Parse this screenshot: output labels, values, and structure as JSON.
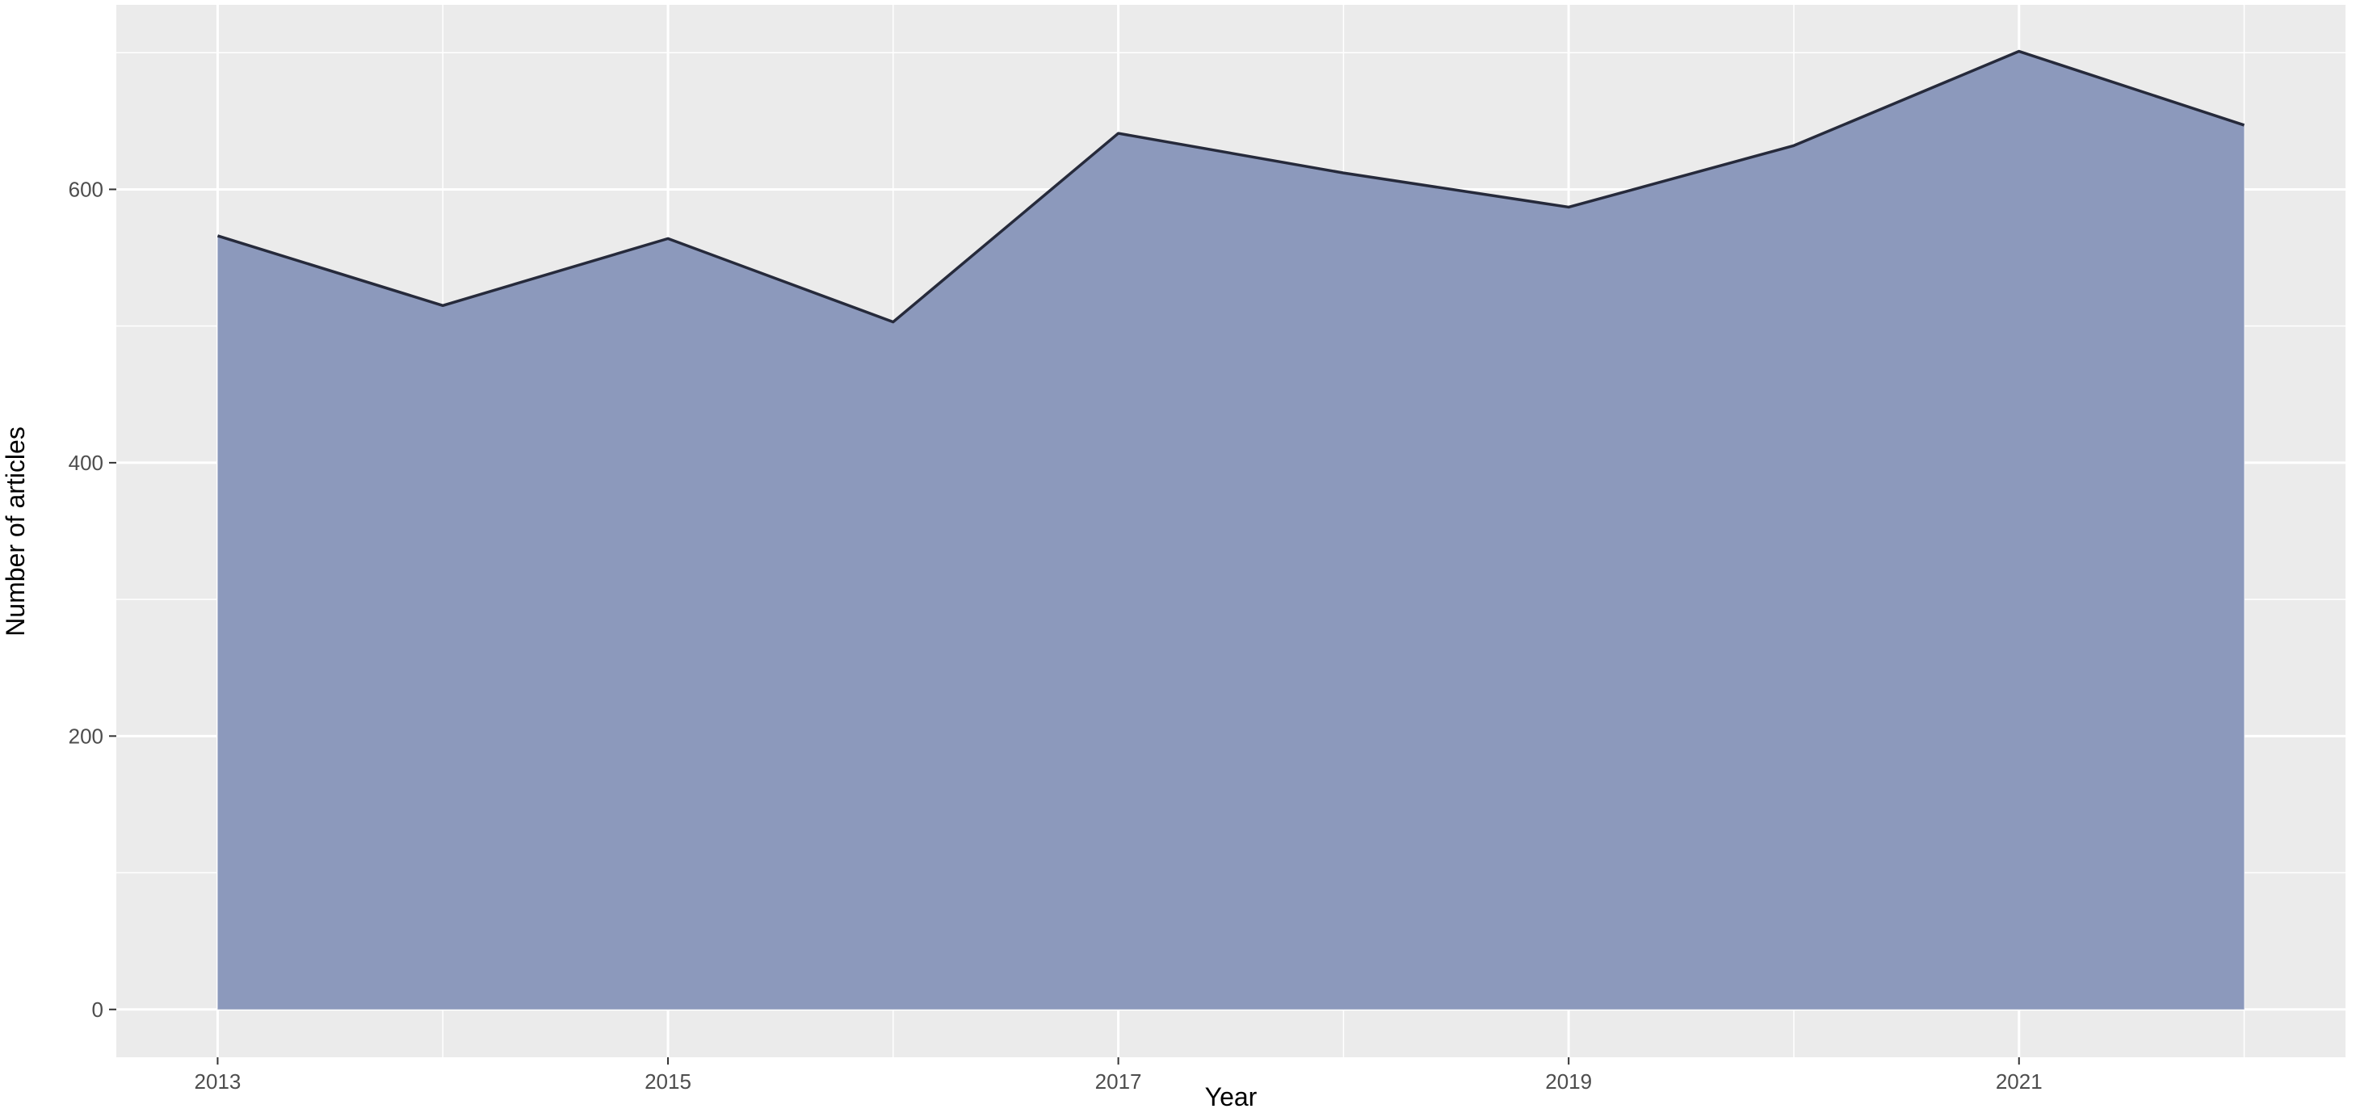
{
  "chart_data": {
    "type": "area",
    "x": [
      2013,
      2014,
      2015,
      2016,
      2017,
      2018,
      2019,
      2020,
      2021,
      2022
    ],
    "series": [
      {
        "values": [
          566,
          515,
          564,
          503,
          641,
          612,
          587,
          632,
          701,
          647
        ]
      }
    ],
    "xlabel": "Year",
    "ylabel": "Number of articles",
    "x_ticks": [
      2013,
      2015,
      2017,
      2019,
      2021
    ],
    "y_ticks": [
      0,
      200,
      400,
      600
    ],
    "xlim": [
      2012.55,
      2022.45
    ],
    "ylim": [
      -35,
      735
    ],
    "grid": true,
    "colors": {
      "panel_background": "#ebebeb",
      "grid": "#ffffff",
      "area_fill": "#8896ba",
      "line": "#262a3b",
      "tick_text": "#4d4d4d",
      "axis_text": "#000000"
    }
  }
}
